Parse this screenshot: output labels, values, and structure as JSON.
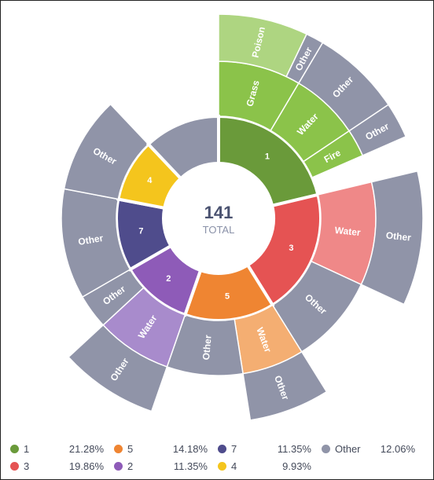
{
  "chart_data": {
    "type": "sunburst",
    "center": {
      "value": "141",
      "label": "TOTAL"
    },
    "groups": [
      {
        "name": "1",
        "color": "#6a9a3a",
        "value": 30,
        "children": [
          {
            "name": "Grass",
            "value": 12,
            "color": "#8bc34a",
            "children": [
              {
                "name": "Poison",
                "value": 10,
                "color": "#aed581"
              },
              {
                "name": "Other",
                "value": 2,
                "color": "#9094a8"
              }
            ]
          },
          {
            "name": "Water",
            "value": 10,
            "color": "#8bc34a",
            "children": [
              {
                "name": "Other",
                "value": 10,
                "color": "#9094a8"
              }
            ]
          },
          {
            "name": "Fire",
            "value": 4,
            "color": "#8bc34a",
            "children": [
              {
                "name": "Other",
                "value": 4,
                "color": "#9094a8"
              }
            ]
          },
          {
            "name": "Other",
            "value": 4,
            "color": null
          }
        ]
      },
      {
        "name": "3",
        "color": "#e55353",
        "value": 28,
        "children": [
          {
            "name": "Water",
            "value": 15,
            "color": "#ef8888",
            "children": [
              {
                "name": "Other",
                "value": 15,
                "color": "#9094a8"
              }
            ]
          },
          {
            "name": "Other",
            "value": 13,
            "color": "#9094a8"
          }
        ]
      },
      {
        "name": "5",
        "color": "#ef8532",
        "value": 20,
        "children": [
          {
            "name": "Water",
            "value": 9,
            "color": "#f4ae72",
            "children": [
              {
                "name": "Other",
                "value": 9,
                "color": "#9094a8"
              }
            ]
          },
          {
            "name": "Other",
            "value": 11,
            "color": "#9094a8"
          }
        ]
      },
      {
        "name": "2",
        "color": "#8e5bb8",
        "value": 16,
        "children": [
          {
            "name": "Water",
            "value": 11,
            "color": "#a88bcc",
            "children": [
              {
                "name": "Other",
                "value": 11,
                "color": "#9094a8"
              }
            ]
          },
          {
            "name": "Other",
            "value": 5,
            "color": "#9094a8"
          }
        ]
      },
      {
        "name": "7",
        "color": "#4f4c8c",
        "value": 16,
        "children": [
          {
            "name": "Other",
            "value": 16,
            "color": "#9094a8"
          }
        ]
      },
      {
        "name": "4",
        "color": "#f4c51d",
        "value": 14,
        "children": [
          {
            "name": "Other",
            "value": 14,
            "color": "#9094a8"
          }
        ]
      },
      {
        "name": "Other",
        "color": "#9094a8",
        "value": 17,
        "children": []
      }
    ],
    "legend": [
      {
        "name": "1",
        "percent": "21.28%",
        "color": "#6a9a3a"
      },
      {
        "name": "5",
        "percent": "14.18%",
        "color": "#ef8532"
      },
      {
        "name": "7",
        "percent": "11.35%",
        "color": "#4f4c8c"
      },
      {
        "name": "Other",
        "percent": "12.06%",
        "color": "#9094a8"
      },
      {
        "name": "3",
        "percent": "19.86%",
        "color": "#e55353"
      },
      {
        "name": "2",
        "percent": "11.35%",
        "color": "#8e5bb8"
      },
      {
        "name": "4",
        "percent": "9.93%",
        "color": "#f4c51d"
      }
    ]
  }
}
